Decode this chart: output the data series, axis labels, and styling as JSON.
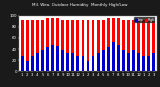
{
  "title": "Mil. Wea. Outdoor Humidity",
  "subtitle": "Monthly High/Low",
  "months": [
    "1",
    "2",
    "3",
    "4",
    "5",
    "6",
    "7",
    "8",
    "9",
    "10",
    "11",
    "12",
    "1",
    "2",
    "3",
    "4",
    "5",
    "6",
    "7",
    "8",
    "9",
    "10",
    "11",
    "12",
    "1",
    "2",
    "3"
  ],
  "highs": [
    93,
    93,
    93,
    93,
    93,
    95,
    95,
    95,
    93,
    93,
    93,
    93,
    93,
    93,
    93,
    93,
    93,
    95,
    95,
    95,
    93,
    93,
    93,
    93,
    93,
    93,
    90
  ],
  "lows": [
    28,
    18,
    28,
    33,
    38,
    43,
    48,
    45,
    38,
    33,
    33,
    28,
    28,
    18,
    28,
    33,
    38,
    43,
    52,
    48,
    38,
    33,
    38,
    33,
    28,
    28,
    33
  ],
  "bar_color_high": "#ff0000",
  "bar_color_low": "#0000cc",
  "bg_color": "#1a1a1a",
  "plot_bg": "#ffffff",
  "title_color": "#ffffff",
  "axis_color": "#888888",
  "tick_color": "#ffffff",
  "ylim": [
    0,
    100
  ],
  "legend_high_label": "High",
  "legend_low_label": "Low",
  "bar_width": 0.55
}
